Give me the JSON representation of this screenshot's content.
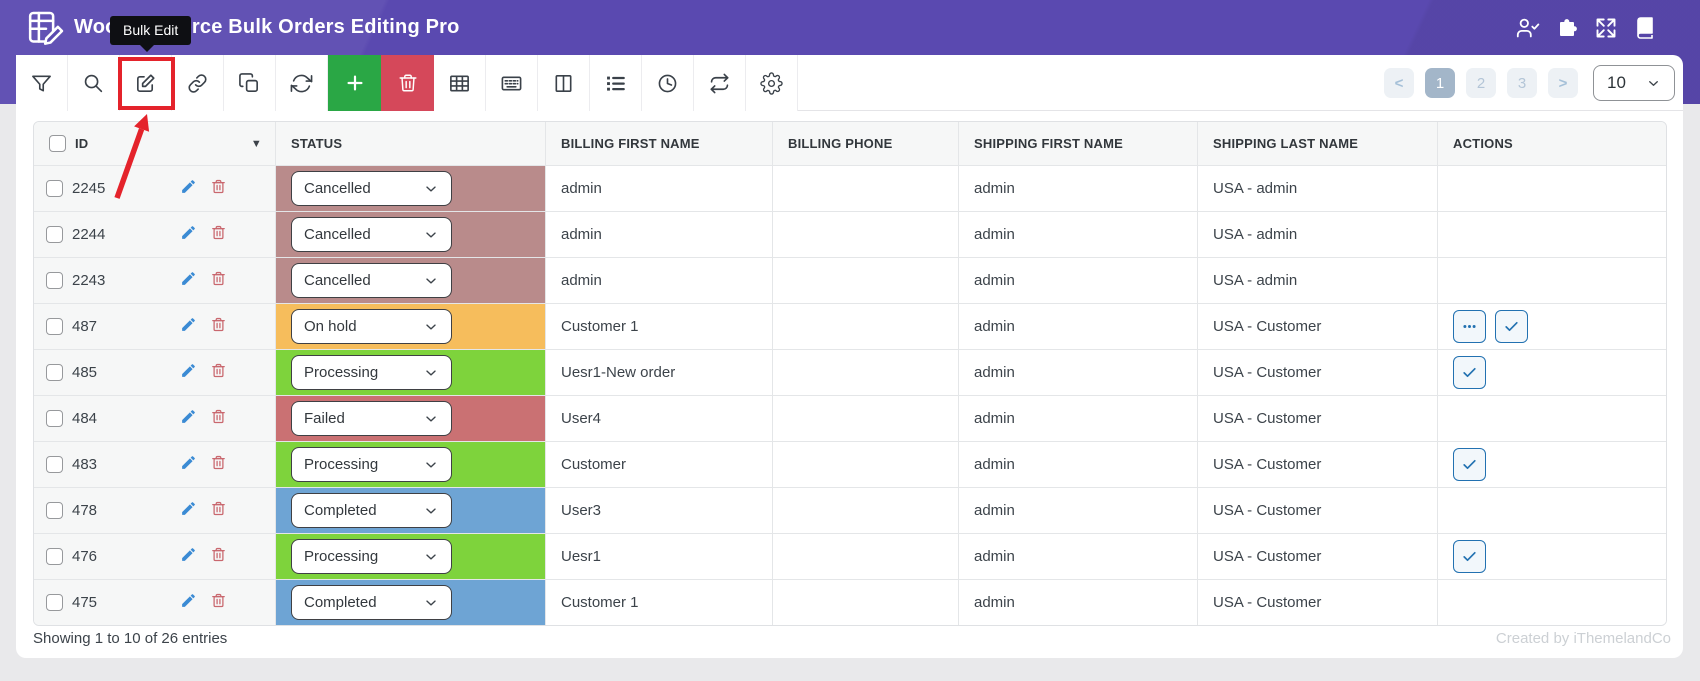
{
  "app": {
    "title": "WooCommerce Bulk Orders Editing Pro",
    "tooltip": "Bulk Edit"
  },
  "header_icons": [
    {
      "name": "user-check-icon"
    },
    {
      "name": "plugin-puzzle-icon"
    },
    {
      "name": "fullscreen-expand-icon"
    },
    {
      "name": "documentation-book-icon"
    }
  ],
  "toolbar": {
    "buttons": [
      {
        "name": "filter",
        "icon": "filter",
        "variant": "default"
      },
      {
        "name": "search",
        "icon": "search",
        "variant": "default"
      },
      {
        "name": "bulk-edit",
        "icon": "edit",
        "variant": "default",
        "highlighted": true
      },
      {
        "name": "bind-edit",
        "icon": "link",
        "variant": "default"
      },
      {
        "name": "duplicate",
        "icon": "copy",
        "variant": "default"
      },
      {
        "name": "refresh",
        "icon": "refresh",
        "variant": "default"
      },
      {
        "name": "add-order",
        "icon": "plus",
        "variant": "success"
      },
      {
        "name": "delete-orders",
        "icon": "trash",
        "variant": "danger"
      },
      {
        "name": "table-view",
        "icon": "grid",
        "variant": "default"
      },
      {
        "name": "inline-edit",
        "icon": "keyboard",
        "variant": "default"
      },
      {
        "name": "columns-manager",
        "icon": "columns",
        "variant": "default"
      },
      {
        "name": "column-profiles",
        "icon": "list",
        "variant": "default"
      },
      {
        "name": "history",
        "icon": "clock",
        "variant": "default"
      },
      {
        "name": "transfer",
        "icon": "repeat",
        "variant": "default"
      },
      {
        "name": "settings",
        "icon": "gear",
        "variant": "default"
      }
    ]
  },
  "pagination": {
    "prev": "<",
    "pages": [
      "1",
      "2",
      "3"
    ],
    "active_page": "1",
    "next": ">",
    "page_size": "10"
  },
  "table": {
    "columns": [
      "ID",
      "STATUS",
      "BILLING FIRST NAME",
      "BILLING PHONE",
      "SHIPPING FIRST NAME",
      "SHIPPING LAST NAME",
      "ACTIONS"
    ],
    "rows": [
      {
        "id": "2245",
        "status": "Cancelled",
        "billing_first_name": "admin",
        "billing_phone": "",
        "shipping_first_name": "admin",
        "shipping_last_name": "USA - admin",
        "actions": []
      },
      {
        "id": "2244",
        "status": "Cancelled",
        "billing_first_name": "admin",
        "billing_phone": "",
        "shipping_first_name": "admin",
        "shipping_last_name": "USA - admin",
        "actions": []
      },
      {
        "id": "2243",
        "status": "Cancelled",
        "billing_first_name": "admin",
        "billing_phone": "",
        "shipping_first_name": "admin",
        "shipping_last_name": "USA - admin",
        "actions": []
      },
      {
        "id": "487",
        "status": "On hold",
        "billing_first_name": "Customer 1",
        "billing_phone": "",
        "shipping_first_name": "admin",
        "shipping_last_name": "USA - Customer",
        "actions": [
          "more",
          "check"
        ]
      },
      {
        "id": "485",
        "status": "Processing",
        "billing_first_name": "Uesr1-New order",
        "billing_phone": "",
        "shipping_first_name": "admin",
        "shipping_last_name": "USA - Customer",
        "actions": [
          "check"
        ]
      },
      {
        "id": "484",
        "status": "Failed",
        "billing_first_name": "User4",
        "billing_phone": "",
        "shipping_first_name": "admin",
        "shipping_last_name": "USA - Customer",
        "actions": []
      },
      {
        "id": "483",
        "status": "Processing",
        "billing_first_name": "Customer",
        "billing_phone": "",
        "shipping_first_name": "admin",
        "shipping_last_name": "USA - Customer",
        "actions": [
          "check"
        ]
      },
      {
        "id": "478",
        "status": "Completed",
        "billing_first_name": "User3",
        "billing_phone": "",
        "shipping_first_name": "admin",
        "shipping_last_name": "USA - Customer",
        "actions": []
      },
      {
        "id": "476",
        "status": "Processing",
        "billing_first_name": "Uesr1",
        "billing_phone": "",
        "shipping_first_name": "admin",
        "shipping_last_name": "USA - Customer",
        "actions": [
          "check"
        ]
      },
      {
        "id": "475",
        "status": "Completed",
        "billing_first_name": "Customer 1",
        "billing_phone": "",
        "shipping_first_name": "admin",
        "shipping_last_name": "USA - Customer",
        "actions": []
      }
    ]
  },
  "status_colors": {
    "Cancelled": "#b98b8b",
    "On hold": "#f6bd5c",
    "Processing": "#7ed33c",
    "Failed": "#ca7173",
    "Completed": "#6ea4d4"
  },
  "footer": {
    "showing": "Showing 1 to 10 of 26 entries",
    "credit": "Created by iThemelandCo"
  },
  "colors": {
    "header_purple": "#5a49b0",
    "add_green": "#2aa745",
    "delete_red": "#d5485a",
    "action_blue": "#2271b1",
    "highlight_red": "#e4232b",
    "active_page_bg": "#a3b6c9"
  }
}
